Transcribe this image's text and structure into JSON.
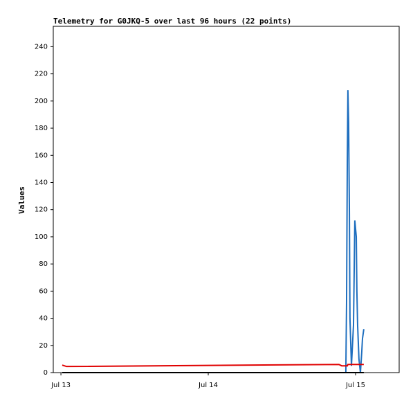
{
  "chart_data": {
    "type": "line",
    "title": "Telemetry for G0JKQ-5 over last 96 hours (22 points)",
    "y_label": "Values",
    "x": [
      0.009,
      0.038,
      1.887,
      1.906,
      1.934,
      1.939,
      1.944,
      1.948,
      1.953,
      1.958,
      1.962,
      1.972,
      1.986,
      1.995,
      2.005,
      2.009,
      2.014,
      2.023,
      2.033,
      2.042,
      2.047,
      2.056
    ],
    "series": [
      {
        "color": "#1f6fbf",
        "values": [
          0,
          0,
          0,
          0,
          0,
          52,
          156,
          208,
          184,
          120,
          40,
          5,
          35,
          112,
          100,
          60,
          35,
          10,
          0,
          15,
          25,
          32
        ]
      },
      {
        "color": "#e00000",
        "values": [
          5.5,
          4.5,
          6,
          5,
          5,
          5,
          5,
          6,
          6,
          6,
          6,
          6,
          6,
          6,
          6,
          6,
          6,
          6,
          6,
          6,
          6,
          6
        ]
      },
      {
        "color": "#000000",
        "values": [
          0,
          0,
          0,
          0,
          0,
          0,
          0,
          0,
          0,
          0,
          0,
          0,
          0,
          0,
          0,
          0,
          0,
          0,
          0,
          0,
          0,
          0
        ]
      }
    ],
    "xlim": [
      -0.052,
      2.296
    ],
    "xticks": [
      {
        "value": 0,
        "label": "Jul 13"
      },
      {
        "value": 1,
        "label": "Jul 14"
      },
      {
        "value": 2,
        "label": "Jul 15"
      }
    ],
    "ylim": [
      0,
      255
    ],
    "yticks": [
      0,
      20,
      40,
      60,
      80,
      100,
      120,
      140,
      160,
      180,
      200,
      220,
      240
    ]
  }
}
